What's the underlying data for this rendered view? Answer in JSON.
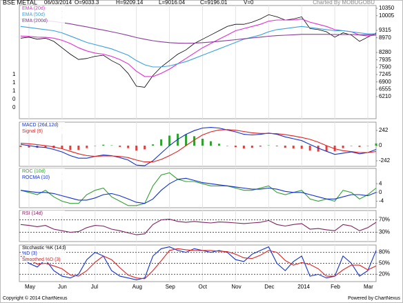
{
  "chart_data": [
    {
      "type": "line",
      "title": "BSE METAL",
      "date": "06/03/2014",
      "ohlc": [
        "O=9033.3",
        "H=9209.14",
        "L=9016.04",
        "C=9196.01",
        "V=0"
      ],
      "credit": "Charted By MOBUGOBU",
      "left_labels": [
        "1",
        "1",
        "1",
        "0",
        "0"
      ],
      "categories": [
        null,
        "May",
        null,
        null,
        null,
        "Jun",
        null,
        null,
        null,
        "Jul",
        null,
        null,
        null,
        null,
        "Aug",
        null,
        null,
        null,
        "Sep",
        null,
        null,
        null,
        "Oct",
        null,
        null,
        null,
        "Nov",
        null,
        null,
        null,
        "Dec",
        null,
        null,
        null,
        "2014",
        null,
        null,
        null,
        "Feb",
        null,
        null,
        null,
        "Mar",
        null
      ],
      "ylim": [
        5175,
        10480
      ],
      "yticks": [
        10350,
        10005,
        9315,
        8970,
        8280,
        7935,
        7590,
        7245,
        6900,
        6555,
        6210
      ],
      "series": [
        {
          "color": "#000000",
          "values": [
            8950,
            9000,
            8900,
            8950,
            8800,
            8500,
            8200,
            7950,
            8000,
            8100,
            8150,
            7900,
            7700,
            7300,
            6700,
            6650,
            7200,
            7600,
            7900,
            8200,
            8400,
            8700,
            8900,
            9100,
            9300,
            9500,
            9600,
            9600,
            9700,
            9850,
            10050,
            9950,
            9800,
            9850,
            9950,
            9400,
            9350,
            9250,
            9000,
            9200,
            9100,
            8800,
            9000,
            9196
          ]
        },
        {
          "name": "EMA (20d)",
          "color": "#e030d0",
          "values": [
            9050,
            9030,
            9000,
            8990,
            8950,
            8850,
            8700,
            8500,
            8350,
            8250,
            8200,
            8100,
            7950,
            7750,
            7400,
            7150,
            7150,
            7300,
            7500,
            7750,
            8000,
            8250,
            8500,
            8700,
            8900,
            9100,
            9300,
            9400,
            9500,
            9600,
            9750,
            9800,
            9800,
            9800,
            9850,
            9700,
            9600,
            9500,
            9350,
            9300,
            9250,
            9100,
            9050,
            9100
          ]
        },
        {
          "name": "EMA (50d)",
          "color": "#3aa0e0",
          "values": [
            9500,
            9450,
            9400,
            9350,
            9300,
            9200,
            9050,
            8900,
            8750,
            8650,
            8550,
            8450,
            8300,
            8150,
            7900,
            7700,
            7600,
            7600,
            7650,
            7750,
            7850,
            8000,
            8150,
            8300,
            8450,
            8600,
            8750,
            8900,
            9000,
            9100,
            9250,
            9350,
            9400,
            9450,
            9500,
            9450,
            9400,
            9350,
            9300,
            9300,
            9250,
            9200,
            9150,
            9150
          ]
        },
        {
          "name": "EMA (200d)",
          "color": "#8a3a9a",
          "values": [
            9850,
            9830,
            9800,
            9770,
            9730,
            9680,
            9620,
            9550,
            9480,
            9400,
            9330,
            9250,
            9170,
            9080,
            8980,
            8900,
            8830,
            8780,
            8740,
            8720,
            8710,
            8720,
            8740,
            8770,
            8800,
            8840,
            8880,
            8920,
            8960,
            9000,
            9040,
            9070,
            9090,
            9110,
            9130,
            9130,
            9130,
            9130,
            9120,
            9120,
            9120,
            9110,
            9110,
            9110
          ]
        }
      ]
    },
    {
      "type": "line",
      "ylim": [
        -330,
        374
      ],
      "yticks": [
        242,
        0,
        -242
      ],
      "series": [
        {
          "style": "bar",
          "color": "#e04040",
          "positive_color": "#30a030",
          "values": [
            -20,
            -30,
            -35,
            -30,
            -40,
            -50,
            -70,
            -70,
            -40,
            0,
            15,
            5,
            -20,
            -40,
            -80,
            -60,
            20,
            100,
            160,
            190,
            180,
            150,
            110,
            70,
            30,
            -5,
            -25,
            -45,
            -35,
            -15,
            5,
            -10,
            -35,
            -45,
            -50,
            -80,
            -95,
            -90,
            -90,
            -40,
            -5,
            -20,
            0,
            35
          ]
        },
        {
          "name": "MACD (26d,12d)",
          "color": "#1030d0",
          "values": [
            20,
            0,
            -20,
            -30,
            -60,
            -100,
            -160,
            -200,
            -200,
            -170,
            -150,
            -160,
            -190,
            -230,
            -310,
            -320,
            -240,
            -120,
            0,
            100,
            180,
            240,
            280,
            290,
            280,
            250,
            220,
            180,
            170,
            180,
            200,
            180,
            140,
            110,
            80,
            20,
            -40,
            -90,
            -140,
            -120,
            -100,
            -130,
            -110,
            -60
          ]
        },
        {
          "name": "Signal (9)",
          "color": "#e02020",
          "values": [
            40,
            30,
            15,
            0,
            -20,
            -50,
            -90,
            -130,
            -160,
            -170,
            -165,
            -165,
            -170,
            -190,
            -230,
            -260,
            -260,
            -220,
            -160,
            -90,
            0,
            90,
            170,
            220,
            250,
            255,
            245,
            225,
            205,
            195,
            195,
            190,
            175,
            155,
            130,
            100,
            55,
            0,
            -50,
            -80,
            -95,
            -110,
            -110,
            -95
          ]
        }
      ]
    },
    {
      "type": "line",
      "ylim": [
        -7,
        11
      ],
      "yticks": [
        4,
        0,
        -4
      ],
      "series": [
        {
          "name": "ROC (10d)",
          "color": "#30a030",
          "values": [
            1,
            0,
            -1,
            1,
            -2,
            -4,
            -5,
            -5,
            -1,
            1,
            2,
            -2,
            -4,
            -6,
            -6,
            -5,
            3,
            8,
            9,
            6,
            5,
            5,
            4,
            3,
            3,
            3,
            2,
            1,
            1,
            2,
            3,
            0,
            -1,
            0,
            1,
            -3,
            -4,
            -3,
            -4,
            1,
            0,
            -3,
            -1,
            2
          ]
        },
        {
          "name": "ROCMA (10)",
          "color": "#1030d0",
          "values": [
            1,
            0.5,
            0,
            0,
            -0.5,
            -1.5,
            -2.5,
            -3.5,
            -3.5,
            -2.5,
            -1,
            -0.5,
            -1.5,
            -3,
            -4.5,
            -5,
            -3,
            1,
            4,
            6,
            6.5,
            5.5,
            4.5,
            4,
            3.5,
            3,
            2.5,
            2,
            1.5,
            1.5,
            2,
            1.5,
            0.5,
            0,
            0,
            -1,
            -2,
            -3,
            -3,
            -2,
            -1,
            -1,
            -1.5,
            0
          ]
        }
      ]
    },
    {
      "type": "line",
      "ylim": [
        0,
        100
      ],
      "grid": true,
      "yticks": [
        {
          "value": 70,
          "label": "70%"
        },
        {
          "value": 30,
          "label": "30%"
        }
      ],
      "series": [
        {
          "name": "RSI (14d)",
          "color": "#802060",
          "values": [
            55,
            52,
            48,
            52,
            40,
            35,
            30,
            32,
            45,
            52,
            50,
            40,
            35,
            28,
            22,
            25,
            55,
            70,
            72,
            65,
            62,
            65,
            62,
            60,
            63,
            62,
            60,
            58,
            60,
            62,
            68,
            55,
            50,
            55,
            58,
            40,
            42,
            38,
            35,
            55,
            50,
            35,
            45,
            62
          ]
        }
      ]
    },
    {
      "type": "line",
      "ylim": [
        0,
        100
      ],
      "grid": true,
      "title": "Stochastic %K (14d)",
      "yticks": [
        {
          "value": 80,
          "label": "80%"
        },
        {
          "value": 50,
          "label": "50%"
        },
        {
          "value": 20,
          "label": "20%"
        }
      ],
      "series": [
        {
          "name": "%D (3)",
          "color": "#1030d0",
          "values": [
            70,
            50,
            40,
            60,
            30,
            15,
            10,
            20,
            60,
            80,
            70,
            30,
            15,
            10,
            5,
            10,
            70,
            90,
            95,
            85,
            80,
            90,
            85,
            80,
            85,
            80,
            60,
            55,
            75,
            85,
            95,
            50,
            30,
            55,
            70,
            15,
            20,
            10,
            15,
            70,
            50,
            15,
            30,
            85
          ]
        },
        {
          "name": "Smoothed %D (3)",
          "color": "#e02020",
          "values": [
            75,
            60,
            48,
            50,
            43,
            35,
            18,
            15,
            30,
            53,
            70,
            60,
            38,
            18,
            10,
            8,
            30,
            57,
            85,
            90,
            87,
            85,
            85,
            85,
            83,
            82,
            75,
            65,
            63,
            72,
            85,
            80,
            58,
            45,
            52,
            47,
            35,
            15,
            15,
            32,
            45,
            45,
            32,
            43
          ]
        }
      ]
    }
  ],
  "footer": {
    "left": "Copyright © 2014 ChartNexus",
    "right": "Powered by ChartNexus"
  }
}
